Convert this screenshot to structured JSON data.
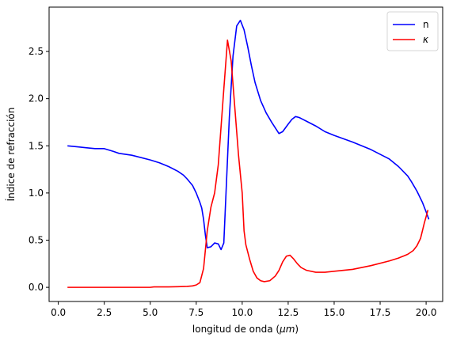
{
  "chart_data": {
    "type": "line",
    "title": "",
    "xlabel": "longitud de onda (",
    "xlabel_unit": "μm",
    "xlabel_close": ")",
    "ylabel": "Índice de refracción",
    "xlim": [
      -0.5,
      20.9
    ],
    "ylim": [
      -0.15,
      2.97
    ],
    "grid": false,
    "legend_position": "top-right",
    "xticks": [
      0.0,
      2.5,
      5.0,
      7.5,
      10.0,
      12.5,
      15.0,
      17.5,
      20.0
    ],
    "xtick_labels": [
      "0.0",
      "2.5",
      "5.0",
      "7.5",
      "10.0",
      "12.5",
      "15.0",
      "17.5",
      "20.0"
    ],
    "yticks": [
      0.0,
      0.5,
      1.0,
      1.5,
      2.0,
      2.5
    ],
    "ytick_labels": [
      "0.0",
      "0.5",
      "1.0",
      "1.5",
      "2.0",
      "2.5"
    ],
    "series": [
      {
        "name": "n",
        "color": "#0000ff",
        "points": [
          [
            0.5,
            1.5
          ],
          [
            1.0,
            1.49
          ],
          [
            1.5,
            1.48
          ],
          [
            2.0,
            1.47
          ],
          [
            2.5,
            1.47
          ],
          [
            3.0,
            1.44
          ],
          [
            3.3,
            1.42
          ],
          [
            4.0,
            1.4
          ],
          [
            5.0,
            1.35
          ],
          [
            5.5,
            1.32
          ],
          [
            6.0,
            1.28
          ],
          [
            6.5,
            1.23
          ],
          [
            6.8,
            1.19
          ],
          [
            7.0,
            1.15
          ],
          [
            7.3,
            1.08
          ],
          [
            7.5,
            1.0
          ],
          [
            7.7,
            0.9
          ],
          [
            7.8,
            0.84
          ],
          [
            7.9,
            0.72
          ],
          [
            8.0,
            0.55
          ],
          [
            8.1,
            0.42
          ],
          [
            8.3,
            0.43
          ],
          [
            8.5,
            0.47
          ],
          [
            8.7,
            0.46
          ],
          [
            8.85,
            0.4
          ],
          [
            9.0,
            0.47
          ],
          [
            9.3,
            1.8
          ],
          [
            9.5,
            2.45
          ],
          [
            9.7,
            2.77
          ],
          [
            9.9,
            2.83
          ],
          [
            10.1,
            2.73
          ],
          [
            10.3,
            2.55
          ],
          [
            10.5,
            2.35
          ],
          [
            10.7,
            2.17
          ],
          [
            11.0,
            1.98
          ],
          [
            11.3,
            1.85
          ],
          [
            11.6,
            1.75
          ],
          [
            12.0,
            1.63
          ],
          [
            12.2,
            1.65
          ],
          [
            12.5,
            1.73
          ],
          [
            12.7,
            1.78
          ],
          [
            12.9,
            1.81
          ],
          [
            13.1,
            1.8
          ],
          [
            13.5,
            1.76
          ],
          [
            14.0,
            1.71
          ],
          [
            14.5,
            1.65
          ],
          [
            15.0,
            1.61
          ],
          [
            16.0,
            1.54
          ],
          [
            17.0,
            1.46
          ],
          [
            18.0,
            1.36
          ],
          [
            18.5,
            1.28
          ],
          [
            19.0,
            1.18
          ],
          [
            19.2,
            1.12
          ],
          [
            19.5,
            1.02
          ],
          [
            19.8,
            0.9
          ],
          [
            20.0,
            0.8
          ],
          [
            20.15,
            0.72
          ]
        ]
      },
      {
        "name": "κ",
        "color": "#ff0000",
        "points": [
          [
            0.5,
            0.0
          ],
          [
            2.0,
            0.0
          ],
          [
            4.0,
            0.0
          ],
          [
            5.0,
            0.0
          ],
          [
            5.2,
            0.005
          ],
          [
            6.0,
            0.005
          ],
          [
            6.5,
            0.007
          ],
          [
            7.0,
            0.01
          ],
          [
            7.3,
            0.015
          ],
          [
            7.5,
            0.025
          ],
          [
            7.7,
            0.05
          ],
          [
            7.9,
            0.2
          ],
          [
            8.1,
            0.6
          ],
          [
            8.3,
            0.85
          ],
          [
            8.5,
            1.0
          ],
          [
            8.7,
            1.3
          ],
          [
            9.0,
            2.1
          ],
          [
            9.2,
            2.62
          ],
          [
            9.4,
            2.4
          ],
          [
            9.6,
            1.9
          ],
          [
            9.8,
            1.4
          ],
          [
            10.0,
            1.0
          ],
          [
            10.1,
            0.6
          ],
          [
            10.2,
            0.45
          ],
          [
            10.4,
            0.3
          ],
          [
            10.6,
            0.17
          ],
          [
            10.8,
            0.1
          ],
          [
            11.0,
            0.07
          ],
          [
            11.2,
            0.06
          ],
          [
            11.5,
            0.07
          ],
          [
            11.8,
            0.12
          ],
          [
            12.0,
            0.18
          ],
          [
            12.2,
            0.27
          ],
          [
            12.4,
            0.33
          ],
          [
            12.6,
            0.34
          ],
          [
            12.8,
            0.3
          ],
          [
            13.0,
            0.25
          ],
          [
            13.2,
            0.21
          ],
          [
            13.5,
            0.18
          ],
          [
            14.0,
            0.16
          ],
          [
            14.5,
            0.16
          ],
          [
            15.0,
            0.17
          ],
          [
            16.0,
            0.19
          ],
          [
            17.0,
            0.23
          ],
          [
            18.0,
            0.28
          ],
          [
            18.5,
            0.31
          ],
          [
            19.0,
            0.35
          ],
          [
            19.3,
            0.39
          ],
          [
            19.5,
            0.44
          ],
          [
            19.7,
            0.52
          ],
          [
            19.9,
            0.68
          ],
          [
            20.1,
            0.82
          ]
        ]
      }
    ]
  }
}
